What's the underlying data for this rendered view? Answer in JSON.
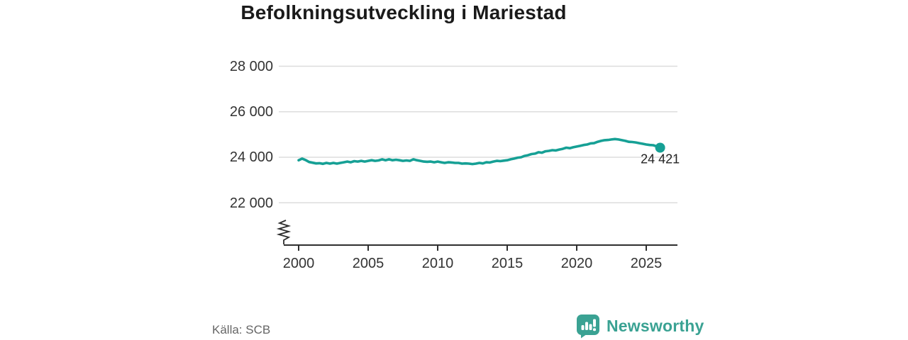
{
  "header": {
    "title": "Befolkningsutveckling i Mariestad"
  },
  "footer": {
    "source": "Källa: SCB",
    "brand": "Newsworthy"
  },
  "colors": {
    "line": "#16a095",
    "brand": "#3aa293",
    "grid": "#dddddd",
    "axis": "#2e2e2e",
    "text": "#333333",
    "muted": "#666666"
  },
  "chart_data": {
    "type": "line",
    "title": "Befolkningsutveckling i Mariestad",
    "grid": "horizontal",
    "legend": "none",
    "axis_break_bottom_left": true,
    "x_start": 2000,
    "x_step": 0.25,
    "xticks": [
      2000,
      2005,
      2010,
      2015,
      2020,
      2025
    ],
    "xtick_labels": [
      "2000",
      "2005",
      "2010",
      "2015",
      "2020",
      "2025"
    ],
    "yticks": [
      28000,
      26000,
      24000,
      22000
    ],
    "ytick_labels": [
      "28 000",
      "26 000",
      "24 000",
      "22 000"
    ],
    "ylim": [
      21550,
      28850
    ],
    "xlim": [
      2000,
      2027.3
    ],
    "end_label": "24 421",
    "end_value": 24421,
    "source": "SCB",
    "series": [
      {
        "values": [
          23870,
          23940,
          23880,
          23790,
          23760,
          23730,
          23740,
          23710,
          23750,
          23720,
          23750,
          23720,
          23750,
          23780,
          23810,
          23780,
          23830,
          23810,
          23840,
          23810,
          23840,
          23870,
          23840,
          23860,
          23910,
          23870,
          23910,
          23870,
          23890,
          23870,
          23840,
          23860,
          23840,
          23910,
          23870,
          23840,
          23810,
          23800,
          23810,
          23780,
          23810,
          23780,
          23750,
          23780,
          23770,
          23750,
          23750,
          23720,
          23730,
          23720,
          23700,
          23720,
          23750,
          23730,
          23780,
          23770,
          23810,
          23840,
          23830,
          23850,
          23870,
          23910,
          23940,
          23980,
          24000,
          24060,
          24090,
          24140,
          24160,
          24220,
          24200,
          24260,
          24280,
          24310,
          24300,
          24340,
          24370,
          24420,
          24400,
          24440,
          24470,
          24500,
          24540,
          24560,
          24610,
          24620,
          24680,
          24720,
          24750,
          24760,
          24780,
          24800,
          24780,
          24750,
          24720,
          24680,
          24670,
          24650,
          24620,
          24590,
          24560,
          24540,
          24530,
          24480,
          24421
        ]
      }
    ]
  }
}
